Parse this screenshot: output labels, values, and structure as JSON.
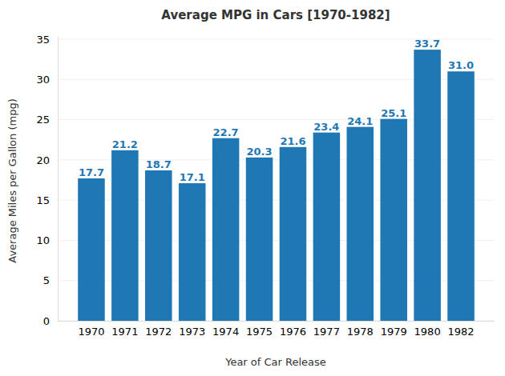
{
  "chart_data": {
    "type": "bar",
    "title": "Average MPG in Cars [1970-1982]",
    "x_label": "Year of Car Release",
    "y_label": "Average Miles per Gallon (mpg)",
    "categories": [
      "1970",
      "1971",
      "1972",
      "1973",
      "1974",
      "1975",
      "1976",
      "1977",
      "1978",
      "1979",
      "1980",
      "1982"
    ],
    "values": [
      17.7,
      21.2,
      18.7,
      17.1,
      22.7,
      20.3,
      21.6,
      23.4,
      24.1,
      25.1,
      33.7,
      31.0
    ],
    "value_labels": [
      "17.7",
      "21.2",
      "18.7",
      "17.1",
      "22.7",
      "20.3",
      "21.6",
      "23.4",
      "24.1",
      "25.1",
      "33.7",
      "31.0"
    ],
    "color": "#1f77b4",
    "ylim": [
      0,
      35.4
    ],
    "yticks": [
      0,
      5,
      10,
      15,
      20,
      25,
      30,
      35
    ],
    "grid": true,
    "data_labels": true
  }
}
